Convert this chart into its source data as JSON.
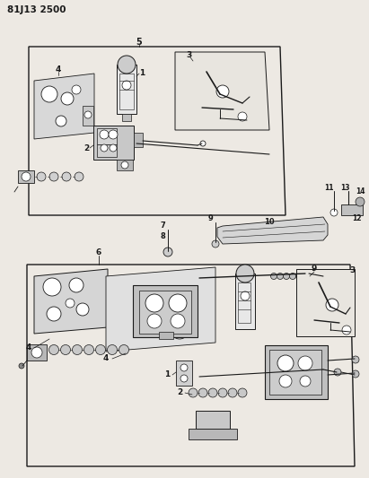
{
  "title": "81J13 2500",
  "bg_color": "#ede9e3",
  "line_color": "#1a1a1a",
  "fig_width": 4.11,
  "fig_height": 5.33,
  "dpi": 100
}
